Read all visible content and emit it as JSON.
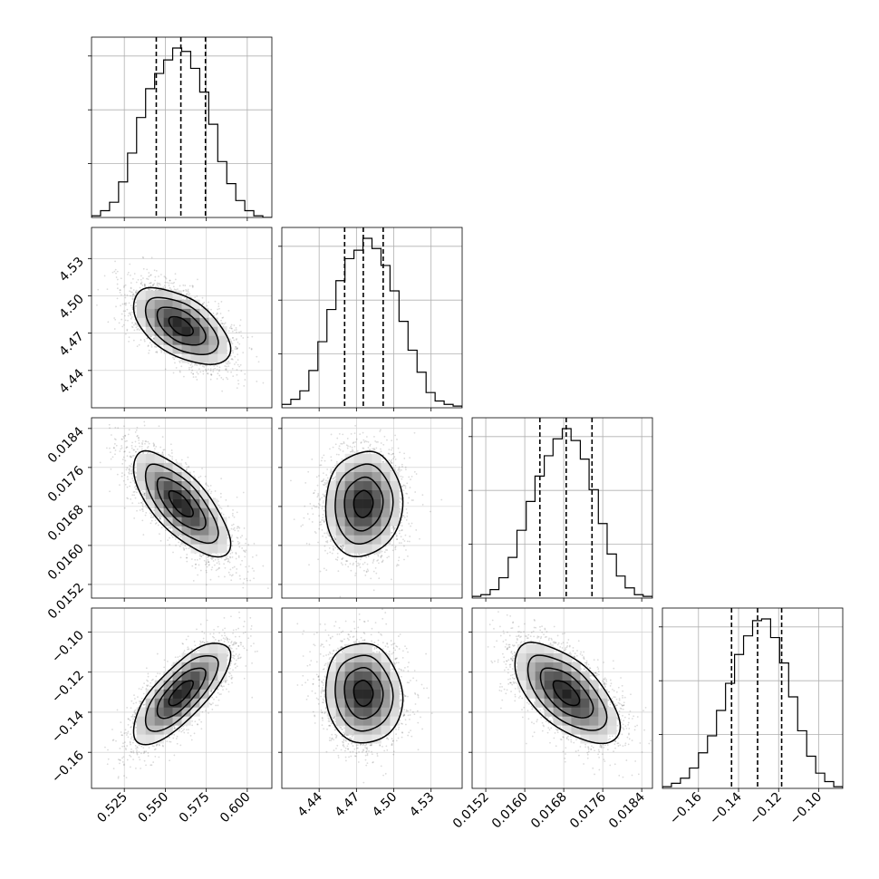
{
  "chart_data": {
    "type": "corner",
    "parameters": [
      {
        "label": "",
        "range": [
          0.505,
          0.615
        ],
        "ticks": [
          0.525,
          0.55,
          0.575,
          0.6
        ],
        "tick_labels": [
          "0.525",
          "0.550",
          "0.575",
          "0.600"
        ],
        "quantiles": [
          0.5445,
          0.5595,
          0.5745
        ],
        "hist_bins": [
          0.505,
          0.5105,
          0.516,
          0.5215,
          0.527,
          0.5325,
          0.538,
          0.5435,
          0.549,
          0.5545,
          0.56,
          0.5655,
          0.571,
          0.5765,
          0.582,
          0.5875,
          0.593,
          0.5985,
          0.604,
          0.6095,
          0.615
        ],
        "hist_counts": [
          1,
          4,
          9,
          21,
          38,
          59,
          76,
          85,
          93,
          100,
          98,
          88,
          74,
          55,
          33,
          20,
          10,
          4,
          1,
          0
        ]
      },
      {
        "label": "",
        "range": [
          4.41,
          4.555
        ],
        "ticks": [
          4.44,
          4.47,
          4.5,
          4.53
        ],
        "tick_labels": [
          "4.44",
          "4.47",
          "4.50",
          "4.53"
        ],
        "quantiles": [
          4.4605,
          4.4755,
          4.4915
        ],
        "hist_bins": [
          4.41,
          4.41725,
          4.4245,
          4.43175,
          4.439,
          4.44625,
          4.4535,
          4.46075,
          4.468,
          4.47525,
          4.4825,
          4.48975,
          4.497,
          4.50425,
          4.5115,
          4.51875,
          4.526,
          4.53325,
          4.5405,
          4.54775,
          4.555
        ],
        "hist_counts": [
          2,
          5,
          10,
          22,
          39,
          58,
          75,
          88,
          93,
          100,
          94,
          84,
          69,
          51,
          34,
          21,
          9,
          4,
          2,
          1
        ],
        "y_ticks": [
          4.44,
          4.47,
          4.5,
          4.53
        ],
        "y_tick_labels": [
          "4.44",
          "4.47",
          "4.50",
          "4.53"
        ]
      },
      {
        "label": "",
        "range": [
          0.01492,
          0.01862
        ],
        "ticks": [
          0.0152,
          0.016,
          0.0168,
          0.0176,
          0.0184
        ],
        "tick_labels": [
          "0.0152",
          "0.0160",
          "0.0168",
          "0.0176",
          "0.0184"
        ],
        "quantiles": [
          0.01631,
          0.01685,
          0.01738
        ],
        "hist_bins": [
          0.01492,
          0.0151,
          0.01529,
          0.01547,
          0.01566,
          0.01584,
          0.01603,
          0.01621,
          0.0164,
          0.01658,
          0.01677,
          0.01695,
          0.01714,
          0.01732,
          0.01751,
          0.01769,
          0.01788,
          0.01806,
          0.01825,
          0.01843,
          0.01862
        ],
        "hist_counts": [
          1,
          2,
          5,
          12,
          24,
          40,
          57,
          72,
          84,
          94,
          100,
          93,
          82,
          64,
          44,
          26,
          13,
          6,
          2,
          1
        ],
        "y_ticks": [
          0.0152,
          0.016,
          0.0168,
          0.0176,
          0.0184
        ],
        "y_tick_labels": [
          "0.0152",
          "0.0160",
          "0.0168",
          "0.0176",
          "0.0184"
        ]
      },
      {
        "label": "",
        "range": [
          -0.178,
          -0.088
        ],
        "ticks": [
          -0.16,
          -0.14,
          -0.12,
          -0.1
        ],
        "tick_labels": [
          "−0.16",
          "−0.14",
          "−0.12",
          "−0.10"
        ],
        "quantiles": [
          -0.1435,
          -0.1305,
          -0.1185
        ],
        "hist_bins": [
          -0.178,
          -0.1735,
          -0.169,
          -0.1645,
          -0.16,
          -0.1555,
          -0.151,
          -0.1465,
          -0.142,
          -0.1375,
          -0.133,
          -0.1285,
          -0.124,
          -0.1195,
          -0.115,
          -0.1105,
          -0.106,
          -0.1015,
          -0.097,
          -0.0925,
          -0.088
        ],
        "hist_counts": [
          1,
          3,
          6,
          12,
          21,
          31,
          46,
          62,
          79,
          90,
          99,
          100,
          89,
          74,
          54,
          34,
          19,
          9,
          4,
          1
        ],
        "y_ticks": [
          -0.16,
          -0.14,
          -0.12,
          -0.1
        ],
        "y_tick_labels": [
          "−0.16",
          "−0.14",
          "−0.12",
          "−0.10"
        ]
      }
    ],
    "means": [
      0.5595,
      4.4755,
      0.01685,
      -0.1305
    ],
    "sigmas": [
      0.0148,
      0.0155,
      0.00054,
      0.0126
    ],
    "correlations": [
      [
        1,
        -0.55,
        -0.72,
        0.75
      ],
      [
        -0.55,
        1,
        0.05,
        -0.08
      ],
      [
        -0.72,
        0.05,
        1,
        -0.62
      ],
      [
        0.75,
        -0.08,
        -0.62,
        1
      ]
    ],
    "hist_y_ticks": 3,
    "grid": true,
    "contour_levels_sigma": [
      0.5,
      1,
      1.5,
      2
    ]
  }
}
